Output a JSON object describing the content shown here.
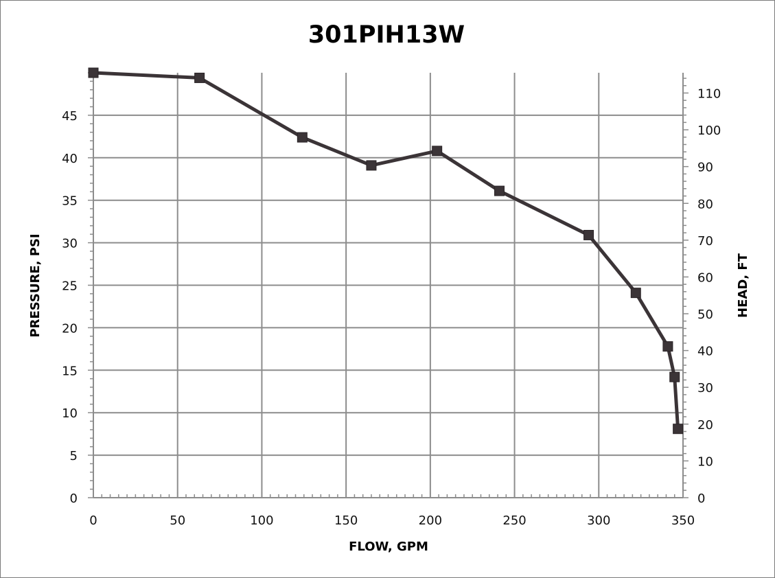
{
  "chart_data": {
    "type": "line",
    "title": "301PIH13W",
    "xlabel": "FLOW, GPM",
    "ylabel": "PRESSURE, PSI",
    "y2label": "HEAD, FT",
    "xlim": [
      0,
      350
    ],
    "ylim": [
      0,
      50
    ],
    "y2lim": [
      0,
      115.5
    ],
    "x_ticks": [
      "0",
      "50",
      "100",
      "150",
      "200",
      "250",
      "300",
      "350"
    ],
    "y_ticks": [
      "0",
      "5",
      "10",
      "15",
      "20",
      "25",
      "30",
      "35",
      "40",
      "45"
    ],
    "y2_ticks": [
      "0",
      "10",
      "20",
      "30",
      "40",
      "50",
      "60",
      "70",
      "80",
      "90",
      "100",
      "110"
    ],
    "grid": true,
    "legend": "none",
    "series": [
      {
        "x": [
          0,
          63,
          124,
          165,
          204,
          241,
          294,
          322,
          341,
          345,
          347
        ],
        "y": [
          50,
          49.4,
          42.4,
          39.1,
          40.8,
          36.1,
          30.9,
          24.1,
          17.8,
          14.2,
          8.1
        ],
        "color": "#3b3437",
        "marker": "square"
      }
    ]
  }
}
